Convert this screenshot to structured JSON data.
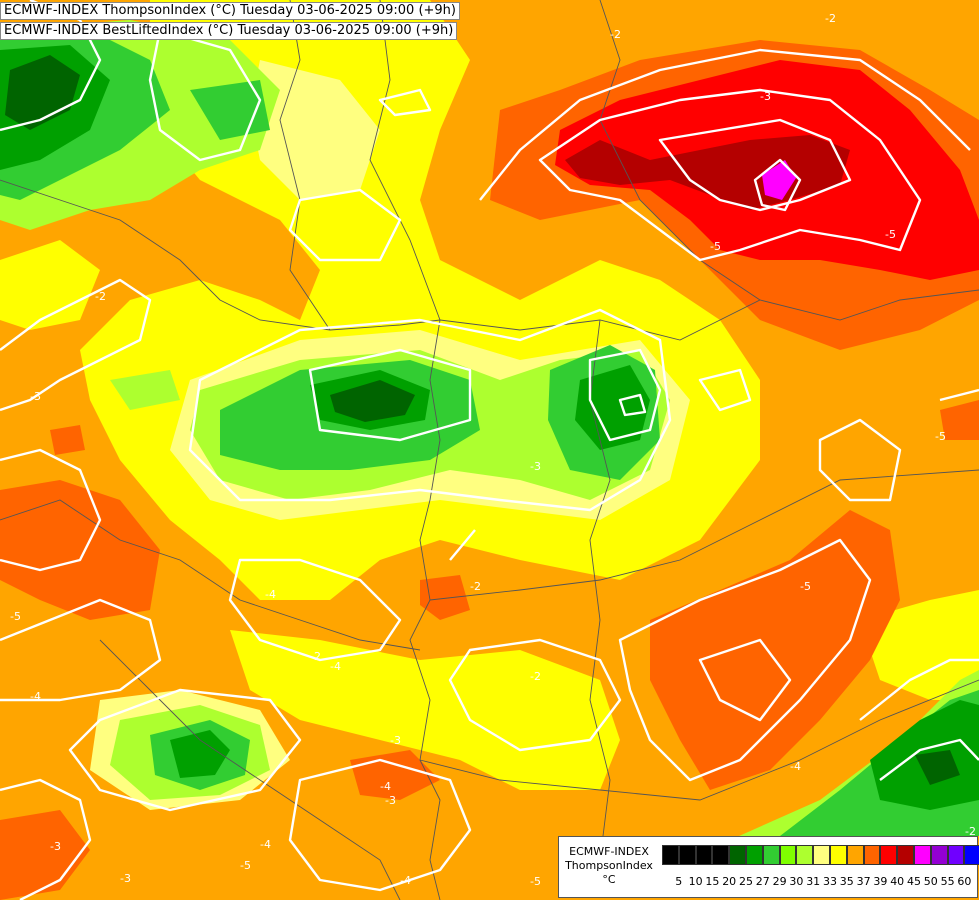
{
  "titles": {
    "line1": "ECMWF-INDEX ThompsonIndex (°C) Tuesday 03-06-2025 09:00 (+9h)",
    "line2": "ECMWF-INDEX BestLiftedIndex (°C) Tuesday 03-06-2025 09:00 (+9h)"
  },
  "legend": {
    "line1": "ECMWF-INDEX",
    "line2": "ThompsonIndex",
    "unit": "°C",
    "ticks": [
      "5",
      "10",
      "15",
      "20",
      "25",
      "27",
      "29",
      "30",
      "31",
      "33",
      "35",
      "37",
      "39",
      "40",
      "45",
      "50",
      "55",
      "60"
    ],
    "colors": [
      "#000000",
      "#000000",
      "#000000",
      "#000000",
      "#006400",
      "#00a000",
      "#32cd32",
      "#7fff00",
      "#adff2f",
      "#ffff80",
      "#ffff00",
      "#ffa500",
      "#ff6400",
      "#ff0000",
      "#b40000",
      "#ff00ff",
      "#9400d3",
      "#7000ff",
      "#0000ff"
    ]
  },
  "contour_labels": [
    "-2",
    "-2",
    "-3",
    "-3",
    "-3",
    "-5",
    "-5",
    "-5",
    "-4",
    "-4",
    "-4",
    "-3",
    "-2",
    "-2",
    "-3",
    "-5",
    "-4",
    "-5",
    "-3",
    "-2",
    "-4",
    "-3",
    "-4",
    "-4",
    "-5",
    "-5",
    "-2",
    "-2"
  ],
  "colors": {
    "background_orange": "#ffa500",
    "yellow": "#ffff00",
    "light_yellow": "#ffff80",
    "green_yellow": "#adff2f",
    "chartreuse": "#7fff00",
    "lime": "#32cd32",
    "green": "#00a000",
    "dark_green": "#006400",
    "orange_red": "#ff6400",
    "red": "#ff0000",
    "dark_red": "#b40000",
    "magenta": "#ff00ff",
    "contour_white": "#ffffff",
    "border_gray": "#555555"
  }
}
